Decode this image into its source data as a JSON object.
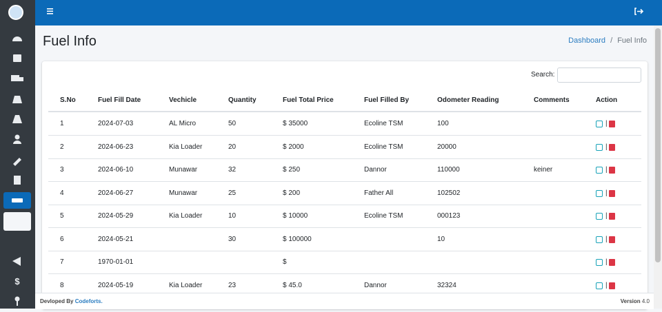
{
  "page": {
    "title": "Fuel Info",
    "breadcrumb": {
      "home": "Dashboard",
      "separator": "/",
      "current": "Fuel Info"
    },
    "search_label": "Search:",
    "table": {
      "columns": [
        "S.No",
        "Fuel Fill Date",
        "Vechicle",
        "Quantity",
        "Fuel Total Price",
        "Fuel Filled By",
        "Odometer Reading",
        "Comments",
        "Action"
      ],
      "action_separator": "|",
      "rows": [
        [
          1,
          "2024-07-03",
          "AL Micro",
          50,
          "$ 35000",
          "Ecoline TSM",
          "100",
          null
        ],
        [
          2,
          "2024-06-23",
          "Kia Loader",
          20,
          "$ 2000",
          "Ecoline TSM",
          "20000",
          null
        ],
        [
          3,
          "2024-06-10",
          "Munawar",
          32,
          "$ 250",
          "Dannor",
          "110000",
          "keiner"
        ],
        [
          4,
          "2024-06-27",
          "Munawar",
          25,
          "$ 200",
          "Father All",
          "102502",
          null
        ],
        [
          5,
          "2024-05-29",
          "Kia Loader",
          10,
          "$ 10000",
          "Ecoline TSM",
          "000123",
          null
        ],
        [
          6,
          "2024-05-21",
          null,
          30,
          "$ 100000",
          null,
          "10",
          null
        ],
        [
          7,
          "1970-01-01",
          null,
          null,
          "$",
          null,
          null,
          null
        ],
        [
          8,
          "2024-05-19",
          "Kia Loader",
          23,
          "$ 45.0",
          "Dannor",
          "32324",
          null
        ]
      ]
    },
    "footer": {
      "developed_by": "Devloped By",
      "company": "Codeforts.",
      "version_label": "Version",
      "version": "4.0"
    }
  }
}
